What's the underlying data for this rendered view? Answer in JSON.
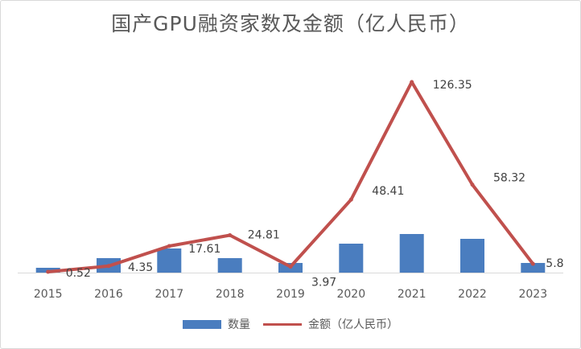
{
  "chart_data": {
    "type": "bar+line",
    "title": "国产GPU融资家数及金额（亿人民币）",
    "categories": [
      "2015",
      "2016",
      "2017",
      "2018",
      "2019",
      "2020",
      "2021",
      "2022",
      "2023"
    ],
    "series": [
      {
        "name": "数量",
        "type": "bar",
        "color": "#4a7dbf",
        "values": [
          1,
          3,
          5,
          3,
          2,
          6,
          8,
          7,
          2
        ]
      },
      {
        "name": "金额（亿人民币）",
        "type": "line",
        "color": "#c0504d",
        "values": [
          0.52,
          4.35,
          17.61,
          24.81,
          3.97,
          48.41,
          126.35,
          58.32,
          5.8
        ],
        "labels": [
          "0.52",
          "4.35",
          "17.61",
          "24.81",
          "3.97",
          "48.41",
          "126.35",
          "58.32",
          "5.8"
        ]
      }
    ],
    "ylim": [
      0,
      135
    ],
    "grid": false,
    "legend": "bottom"
  }
}
